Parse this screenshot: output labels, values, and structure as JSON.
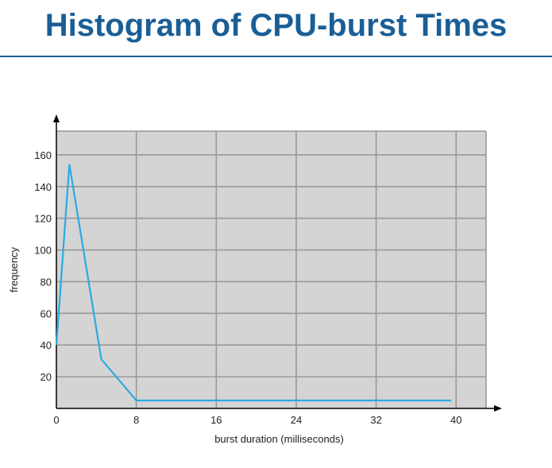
{
  "slide": {
    "title": "Histogram of CPU-burst Times"
  },
  "chart_data": {
    "type": "line",
    "title": "",
    "xlabel": "burst duration (milliseconds)",
    "ylabel": "frequency",
    "xlim": [
      0,
      43
    ],
    "ylim": [
      0,
      175
    ],
    "x_ticks": [
      0,
      8,
      16,
      24,
      32,
      40
    ],
    "y_ticks": [
      20,
      40,
      60,
      80,
      100,
      120,
      140,
      160
    ],
    "grid": true,
    "series": [
      {
        "x": [
          0,
          1.3,
          4.5,
          8,
          39.5
        ],
        "y": [
          40,
          154,
          31,
          5,
          5
        ]
      }
    ],
    "colors": {
      "plot_background": "#d4d4d4",
      "grid": "#999999",
      "line": "#29abe2",
      "axis": "#000000"
    }
  }
}
